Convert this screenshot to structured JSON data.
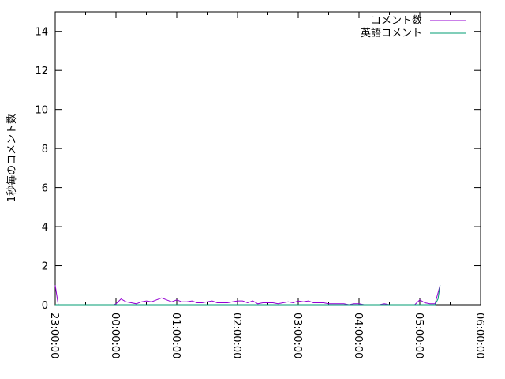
{
  "chart_data": {
    "type": "line",
    "title": "",
    "xlabel": "",
    "ylabel": "1秒毎のコメント数",
    "xlim": [
      "23:00:00",
      "06:00:00"
    ],
    "ylim": [
      0,
      15
    ],
    "x_ticks": [
      "23:00:00",
      "00:00:00",
      "01:00:00",
      "02:00:00",
      "03:00:00",
      "04:00:00",
      "05:00:00",
      "06:00:00"
    ],
    "y_ticks": [
      0,
      2,
      4,
      6,
      8,
      10,
      12,
      14
    ],
    "grid": false,
    "legend": "top-right",
    "series": [
      {
        "name": "コメント数",
        "color": "#9400d3",
        "points": [
          [
            "23:00",
            1
          ],
          [
            "23:03",
            0
          ],
          [
            "23:58",
            0
          ],
          [
            "00:00",
            0.05
          ],
          [
            "00:05",
            0.3
          ],
          [
            "00:10",
            0.15
          ],
          [
            "00:15",
            0.1
          ],
          [
            "00:20",
            0.05
          ],
          [
            "00:25",
            0.15
          ],
          [
            "00:30",
            0.2
          ],
          [
            "00:35",
            0.15
          ],
          [
            "00:40",
            0.25
          ],
          [
            "00:45",
            0.35
          ],
          [
            "00:50",
            0.25
          ],
          [
            "00:55",
            0.15
          ],
          [
            "01:00",
            0.25
          ],
          [
            "01:05",
            0.15
          ],
          [
            "01:10",
            0.15
          ],
          [
            "01:15",
            0.2
          ],
          [
            "01:20",
            0.1
          ],
          [
            "01:25",
            0.1
          ],
          [
            "01:30",
            0.15
          ],
          [
            "01:35",
            0.2
          ],
          [
            "01:40",
            0.1
          ],
          [
            "01:45",
            0.1
          ],
          [
            "01:50",
            0.1
          ],
          [
            "01:55",
            0.15
          ],
          [
            "02:00",
            0.2
          ],
          [
            "02:05",
            0.2
          ],
          [
            "02:10",
            0.1
          ],
          [
            "02:15",
            0.2
          ],
          [
            "02:20",
            0.05
          ],
          [
            "02:25",
            0.1
          ],
          [
            "02:30",
            0.1
          ],
          [
            "02:35",
            0.1
          ],
          [
            "02:40",
            0.05
          ],
          [
            "02:45",
            0.1
          ],
          [
            "02:50",
            0.15
          ],
          [
            "02:55",
            0.1
          ],
          [
            "03:00",
            0.2
          ],
          [
            "03:05",
            0.15
          ],
          [
            "03:10",
            0.2
          ],
          [
            "03:15",
            0.1
          ],
          [
            "03:20",
            0.1
          ],
          [
            "03:25",
            0.1
          ],
          [
            "03:30",
            0.05
          ],
          [
            "03:35",
            0.05
          ],
          [
            "03:40",
            0.05
          ],
          [
            "03:45",
            0.05
          ],
          [
            "03:50",
            0
          ],
          [
            "03:55",
            0.05
          ],
          [
            "04:00",
            0.05
          ],
          [
            "04:05",
            0
          ],
          [
            "04:10",
            0
          ],
          [
            "04:15",
            0
          ],
          [
            "04:20",
            0
          ],
          [
            "04:25",
            0.05
          ],
          [
            "04:30",
            0
          ],
          [
            "04:35",
            0
          ],
          [
            "04:40",
            0
          ],
          [
            "04:45",
            0
          ],
          [
            "04:50",
            0
          ],
          [
            "04:55",
            0
          ],
          [
            "05:00",
            0.25
          ],
          [
            "05:05",
            0.1
          ],
          [
            "05:10",
            0.05
          ],
          [
            "05:15",
            0.05
          ],
          [
            "05:20",
            1
          ]
        ]
      },
      {
        "name": "英語コメント",
        "color": "#009e73",
        "points": [
          [
            "23:00",
            0
          ],
          [
            "05:15",
            0
          ],
          [
            "05:18",
            0.3
          ],
          [
            "05:20",
            1
          ]
        ]
      }
    ]
  }
}
